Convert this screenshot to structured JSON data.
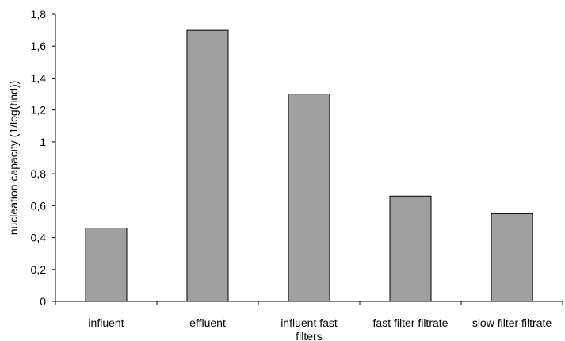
{
  "chart_data": {
    "type": "bar",
    "categories": [
      [
        "influent"
      ],
      [
        "effluent"
      ],
      [
        "influent fast",
        "filters"
      ],
      [
        "fast filter filtrate"
      ],
      [
        "slow filter filtrate"
      ]
    ],
    "values": [
      0.46,
      1.7,
      1.3,
      0.66,
      0.55
    ],
    "ylabel": "nucleation capacity (1/log(tind))",
    "xlabel": "",
    "title": "",
    "ylim": [
      0,
      1.8
    ],
    "yticks": [
      "0",
      "0,2",
      "0,4",
      "0,6",
      "0,8",
      "1",
      "1,2",
      "1,4",
      "1,6",
      "1,8"
    ],
    "grid": false,
    "bar_color": "#a0a0a0",
    "bar_edge_color": "#000000"
  }
}
